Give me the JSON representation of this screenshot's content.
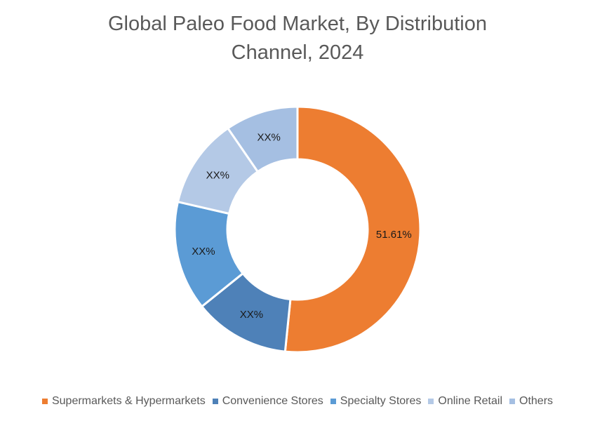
{
  "chart_data": {
    "type": "pie",
    "variant": "doughnut",
    "title": "Global Paleo Food Market, By Distribution Channel, 2024",
    "title_lines": [
      "Global Paleo Food Market, By Distribution",
      "Channel, 2024"
    ],
    "categories": [
      "Supermarkets & Hypermarkets",
      "Convenience Stores",
      "Specialty Stores",
      "Online Retail",
      "Others"
    ],
    "values": [
      51.61,
      12.6,
      14.4,
      11.8,
      9.59
    ],
    "data_labels": [
      "51.61%",
      "XX%",
      "XX%",
      "XX%",
      "XX%"
    ],
    "colors": [
      "#ED7D31",
      "#4E81B8",
      "#5B9BD5",
      "#B4C9E6",
      "#A5BFE2"
    ],
    "legend_position": "bottom",
    "start_angle_deg": 0,
    "direction": "clockwise"
  }
}
